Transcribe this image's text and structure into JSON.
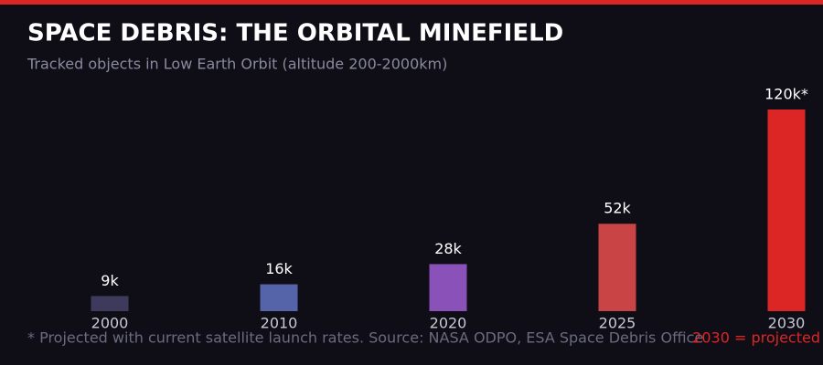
{
  "chart_data": {
    "type": "bar",
    "title": "SPACE DEBRIS: THE ORBITAL MINEFIELD",
    "subtitle": "Tracked objects in Low Earth Orbit (altitude 200-2000km)",
    "categories": [
      "2000",
      "2010",
      "2020",
      "2025",
      "2030"
    ],
    "values": [
      9,
      16,
      28,
      52,
      120
    ],
    "value_labels": [
      "9k",
      "16k",
      "28k",
      "52k",
      "120k*"
    ],
    "colors": [
      "#3d3a5c",
      "#5563a8",
      "#8a52b8",
      "#c94444",
      "#dc2626"
    ],
    "footnote": "* Projected with current satellite launch rates. Source: NASA ODPO, ESA Space Debris Office",
    "annotation": "2030 = projected"
  }
}
